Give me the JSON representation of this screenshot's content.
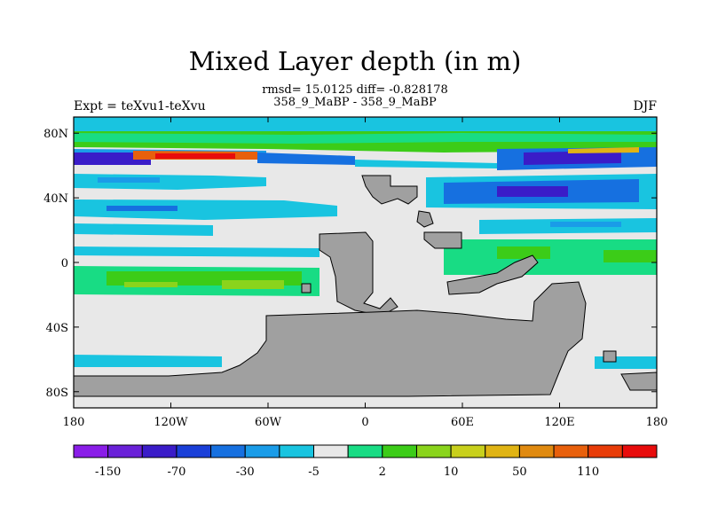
{
  "title": "Mixed Layer depth (in m)",
  "stats_line1": "rmsd= 15.0125 diff= -0.828178",
  "stats_line2": "358_9_MaBP - 358_9_MaBP",
  "left_label": "Expt = teXvu1-teXvu",
  "right_label": "DJF",
  "axes": {
    "x_ticks": [
      {
        "lon": -180,
        "label": "180"
      },
      {
        "lon": -120,
        "label": "120W"
      },
      {
        "lon": -60,
        "label": "60W"
      },
      {
        "lon": 0,
        "label": "0"
      },
      {
        "lon": 60,
        "label": "60E"
      },
      {
        "lon": 120,
        "label": "120E"
      },
      {
        "lon": 180,
        "label": "180"
      }
    ],
    "y_ticks": [
      {
        "lat": 80,
        "label": "80N"
      },
      {
        "lat": 40,
        "label": "40N"
      },
      {
        "lat": 0,
        "label": "0"
      },
      {
        "lat": -40,
        "label": "40S"
      },
      {
        "lat": -80,
        "label": "80S"
      }
    ],
    "lon_range": [
      -180,
      180
    ],
    "lat_range": [
      -90,
      90
    ]
  },
  "colorbar": {
    "colors": [
      "#8a1de8",
      "#6a21d8",
      "#3a1cc8",
      "#1a3fd8",
      "#1670e0",
      "#1a9ce8",
      "#19c4e0",
      "#e8e8e8",
      "#18dc84",
      "#3ccc18",
      "#8ad41c",
      "#c8d01c",
      "#e0b414",
      "#e08a10",
      "#e8600c",
      "#e83c08",
      "#e80c0c"
    ],
    "labels": [
      {
        "after_box": 1,
        "text": "-150"
      },
      {
        "after_box": 3,
        "text": "-70"
      },
      {
        "after_box": 5,
        "text": "-30"
      },
      {
        "after_box": 7,
        "text": "-5"
      },
      {
        "after_box": 9,
        "text": "2"
      },
      {
        "after_box": 11,
        "text": "10"
      },
      {
        "after_box": 13,
        "text": "50"
      },
      {
        "after_box": 15,
        "text": "110"
      }
    ]
  },
  "land_color": "#a0a0a0",
  "ocean_color": "#e8e8e8"
}
